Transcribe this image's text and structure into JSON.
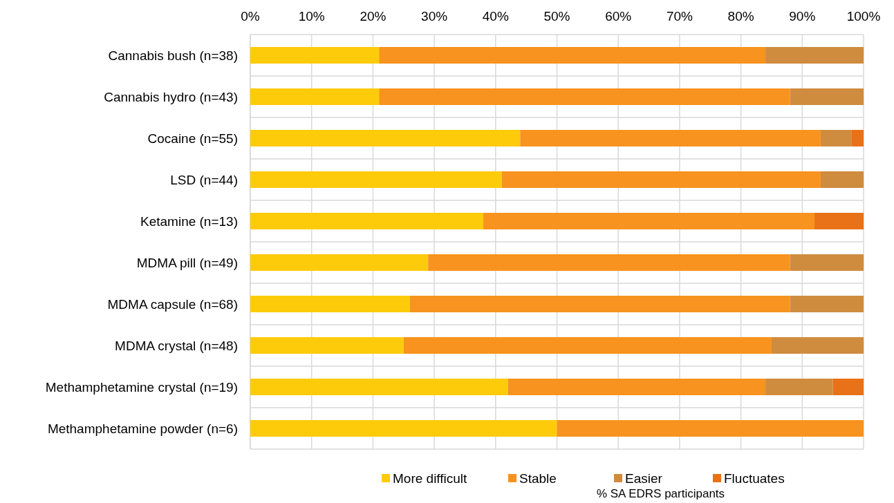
{
  "chart_data": {
    "type": "bar",
    "orientation": "horizontal",
    "stacked": true,
    "xlabel": "% SA EDRS participants",
    "categories": [
      "Cannabis bush (n=38)",
      "Cannabis hydro (n=43)",
      "Cocaine (n=55)",
      "LSD (n=44)",
      "Ketamine (n=13)",
      "MDMA pill (n=49)",
      "MDMA capsule (n=68)",
      "MDMA crystal (n=48)",
      "Methamphetamine crystal (n=19)",
      "Methamphetamine powder (n=6)"
    ],
    "series": [
      {
        "name": "More difficult",
        "color": "#fecb0a",
        "values": [
          21,
          21,
          44,
          41,
          38,
          29,
          26,
          25,
          42,
          50
        ]
      },
      {
        "name": "Stable",
        "color": "#f7931e",
        "values": [
          63,
          67,
          49,
          52,
          54,
          59,
          62,
          60,
          42,
          50
        ]
      },
      {
        "name": "Easier",
        "color": "#cf8c3f",
        "values": [
          16,
          12,
          5,
          7,
          0,
          12,
          12,
          15,
          11,
          0
        ]
      },
      {
        "name": "Fluctuates",
        "color": "#e97118",
        "values": [
          0,
          0,
          2,
          0,
          8,
          0,
          0,
          0,
          5,
          0
        ]
      }
    ],
    "xlim": [
      0,
      100
    ],
    "xticks": [
      {
        "value": 0,
        "label": "0%"
      },
      {
        "value": 10,
        "label": "10%"
      },
      {
        "value": 20,
        "label": "20%"
      },
      {
        "value": 30,
        "label": "30%"
      },
      {
        "value": 40,
        "label": "40%"
      },
      {
        "value": 50,
        "label": "50%"
      },
      {
        "value": 60,
        "label": "60%"
      },
      {
        "value": 70,
        "label": "70%"
      },
      {
        "value": 80,
        "label": "80%"
      },
      {
        "value": 90,
        "label": "90%"
      },
      {
        "value": 100,
        "label": "100%"
      }
    ],
    "grid": true,
    "legend": "bottom"
  }
}
